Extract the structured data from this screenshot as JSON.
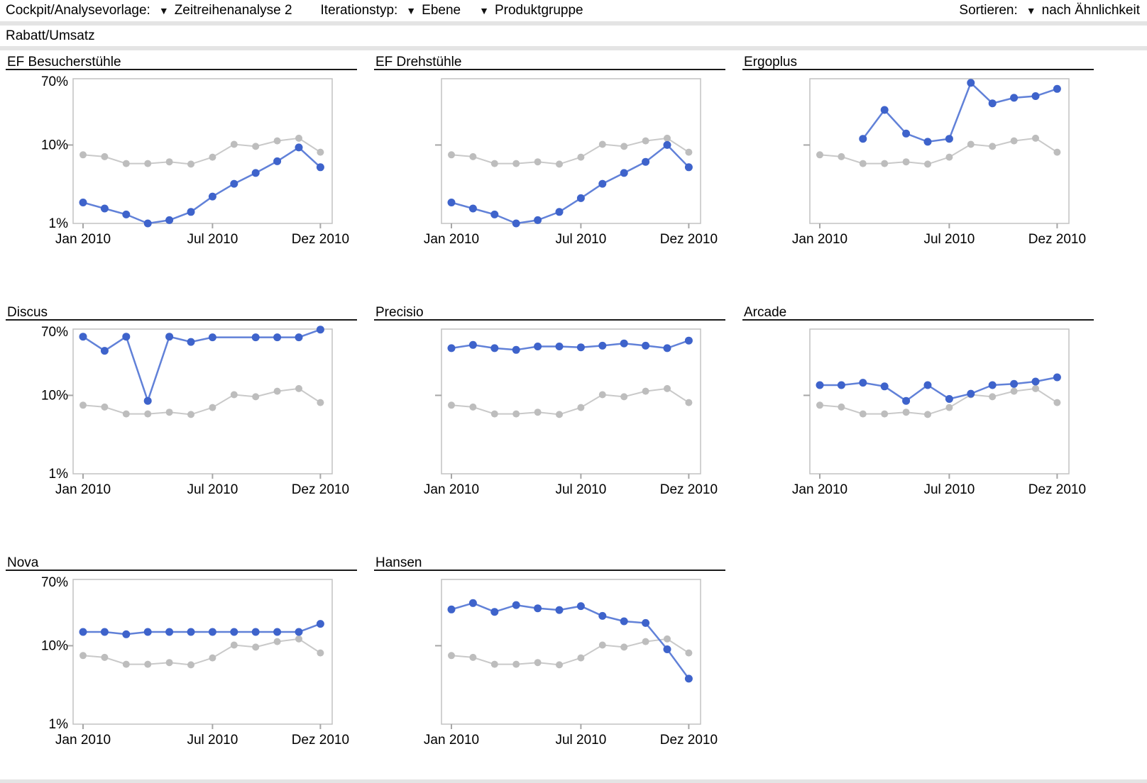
{
  "toolbar": {
    "cockpit_label": "Cockpit/Analysevorlage:",
    "cockpit_value": "Zeitreihenanalyse 2",
    "iteration_label": "Iterationstyp:",
    "iteration_value_1": "Ebene",
    "iteration_value_2": "Produktgruppe",
    "sort_label": "Sortieren:",
    "sort_value": "nach Ähnlichkeit",
    "dropdown_icon": "▼"
  },
  "view": {
    "title": "Rabatt/Umsatz"
  },
  "colors": {
    "product_line": "#6181d8",
    "product_dot": "#3e63cb",
    "reference_line": "#c9c9c9",
    "reference_dot": "#bdbdbd",
    "frame": "#c2c2c2",
    "tick": "#a6a6a6",
    "separator_band": "#e4e4e4",
    "title_rule": "#1a1a1a"
  },
  "chart_data": {
    "type": "line",
    "y_scale": "log",
    "ylim": [
      1,
      70
    ],
    "y_ticks": [
      {
        "value": 70,
        "label": "70%"
      },
      {
        "value": 10,
        "label": "10%"
      },
      {
        "value": 1,
        "label": "1%"
      }
    ],
    "x_points": 12,
    "x_ticks": [
      {
        "index": 0,
        "label": "Jan 2010"
      },
      {
        "index": 6,
        "label": "Jul 2010"
      },
      {
        "index": 11,
        "label": "Dez 2010"
      }
    ],
    "reference_series_values": [
      7.5,
      7.1,
      5.8,
      5.8,
      6.1,
      5.7,
      7.0,
      10.2,
      9.6,
      11.3,
      12.2,
      8.1
    ],
    "charts": [
      {
        "title": "EF Besucherstühle",
        "y_axis_labels": true,
        "values": [
          1.85,
          1.55,
          1.3,
          1.0,
          1.1,
          1.4,
          2.2,
          3.2,
          4.4,
          6.2,
          9.3,
          5.2
        ]
      },
      {
        "title": "EF Drehstühle",
        "y_axis_labels": false,
        "values": [
          1.85,
          1.55,
          1.3,
          1.0,
          1.1,
          1.4,
          2.1,
          3.2,
          4.4,
          6.1,
          10.0,
          5.2
        ]
      },
      {
        "title": "Ergoplus",
        "y_axis_labels": false,
        "values": [
          null,
          null,
          12,
          28,
          14,
          11,
          12,
          62,
          34,
          40,
          42,
          52
        ]
      },
      {
        "title": "Discus",
        "y_axis_labels": true,
        "values": [
          56,
          37,
          56,
          8.5,
          56,
          48,
          55,
          null,
          55,
          55,
          55,
          69
        ]
      },
      {
        "title": "Precisio",
        "y_axis_labels": false,
        "values": [
          40,
          44,
          40,
          38,
          42,
          42,
          41,
          43,
          46,
          43,
          40,
          50
        ]
      },
      {
        "title": "Arcade",
        "y_axis_labels": false,
        "values": [
          13.5,
          13.5,
          14.5,
          13,
          8.5,
          13.5,
          9,
          10.5,
          13.5,
          14,
          15,
          17
        ]
      },
      {
        "title": "Nova",
        "y_axis_labels": true,
        "values": [
          15,
          15,
          14,
          15,
          15,
          15,
          15,
          15,
          15,
          15,
          15,
          19
        ]
      },
      {
        "title": "Hansen",
        "y_axis_labels": false,
        "values": [
          29,
          35,
          27,
          33,
          30,
          28.5,
          32,
          24,
          20.5,
          19.5,
          9,
          3.8
        ]
      }
    ]
  }
}
